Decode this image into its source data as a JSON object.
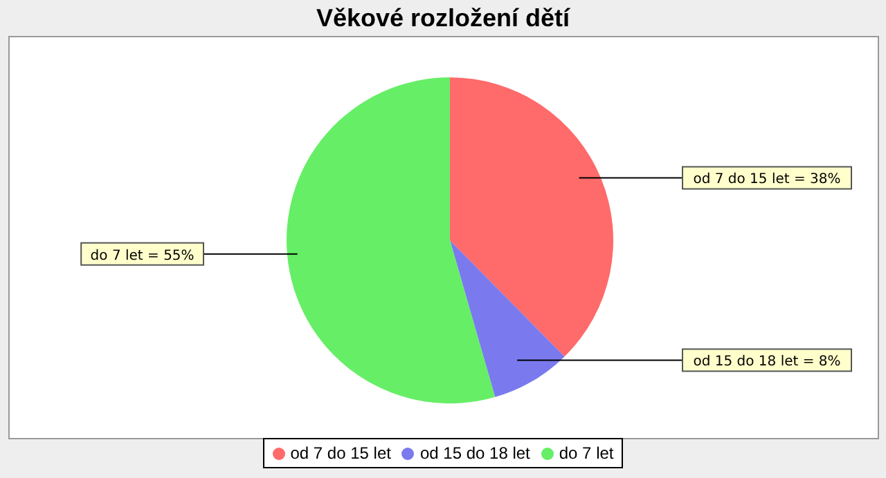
{
  "chart_data": {
    "type": "pie",
    "title": "Věkové rozložení dětí",
    "categories": [
      "od 7 do 15 let",
      "od 15 do 18 let",
      "do 7 let"
    ],
    "values": [
      38,
      8,
      55
    ],
    "colors": [
      "#ff6a6a",
      "#7a7aee",
      "#66ee66"
    ],
    "value_labels": [
      "od 7 do 15 let = 38%",
      "od 15 do 18 let = 8%",
      "do 7 let = 55%"
    ],
    "legend": "bottom"
  }
}
